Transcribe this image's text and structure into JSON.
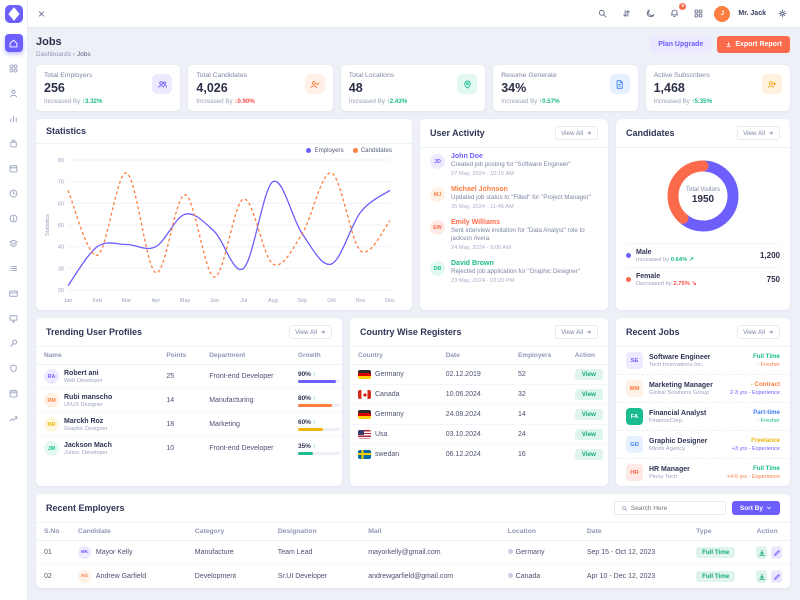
{
  "topbar": {
    "user_name": "Mr. Jack",
    "bell_badge": "5",
    "avatar_initial": "J"
  },
  "page": {
    "title": "Jobs",
    "breadcrumb_root": "Dashboards",
    "breadcrumb_sep": "›",
    "breadcrumb_current": "Jobs",
    "plan_upgrade": "Plan Upgrade",
    "export_report": "Export Report"
  },
  "colors": {
    "primary": "#6c5ffc",
    "coral": "#fb6b4b",
    "green": "#1bbc8f",
    "orange": "#fd7e41",
    "red": "#fb4a4a"
  },
  "stats": [
    {
      "label": "Total Employers",
      "value": "256",
      "prefix": "Increased By",
      "change": "3.32%",
      "dir": "up",
      "icon_bg": "#edeaff",
      "icon_fg": "#6c5ffc"
    },
    {
      "label": "Total Candidates",
      "value": "4,026",
      "prefix": "Increased By",
      "change": "0.90%",
      "dir": "down",
      "icon_bg": "#ffefe6",
      "icon_fg": "#fd7e41"
    },
    {
      "label": "Total Locations",
      "value": "48",
      "prefix": "Increased By",
      "change": "2.43%",
      "dir": "up",
      "icon_bg": "#e2f8f0",
      "icon_fg": "#1bbc8f"
    },
    {
      "label": "Resume Generate",
      "value": "34%",
      "prefix": "Increased By",
      "change": "0.57%",
      "dir": "up",
      "icon_bg": "#e5f1ff",
      "icon_fg": "#3e80f1"
    },
    {
      "label": "Active Subscribers",
      "value": "1,468",
      "prefix": "Increased By",
      "change": "5.35%",
      "dir": "up",
      "icon_bg": "#fff3df",
      "icon_fg": "#f5a623"
    }
  ],
  "chart_data": {
    "type": "line",
    "title": "Statistics",
    "ylabel": "Statistics",
    "x": [
      "Jan",
      "Feb",
      "Mar",
      "Apr",
      "May",
      "Jun",
      "Jul",
      "Aug",
      "Sep",
      "Oct",
      "Nov",
      "Dec"
    ],
    "ylim": [
      20,
      80
    ],
    "yticks": [
      20,
      30,
      40,
      50,
      60,
      70,
      80
    ],
    "grid": true,
    "legend_position": "top-right",
    "series": [
      {
        "name": "Employers",
        "color": "#6c5ffc",
        "style": "solid",
        "values": [
          22,
          40,
          41,
          40,
          55,
          47,
          30,
          70,
          46,
          32,
          56,
          66
        ]
      },
      {
        "name": "Candidates",
        "color": "#fd7e41",
        "style": "dashed",
        "values": [
          66,
          36,
          74,
          28,
          64,
          26,
          62,
          32,
          46,
          74,
          38,
          52
        ]
      }
    ]
  },
  "user_activity": {
    "title": "User Activity",
    "view_all": "View All",
    "items": [
      {
        "initials": "JD",
        "avatar_bg": "#edeaff",
        "avatar_fg": "#6c5ffc",
        "name": "John Doe",
        "text": "Created job posting for \"Software Engineer\"",
        "time": "27 May, 2024 - 10:15 AM"
      },
      {
        "initials": "MJ",
        "avatar_bg": "#fff1e5",
        "avatar_fg": "#fd7e41",
        "name": "Michael Johnson",
        "text": "Updated job status to \"Filled\" for \"Project Manager\"",
        "time": "25 May, 2024 - 11:45 AM"
      },
      {
        "initials": "EW",
        "avatar_bg": "#ffe9e4",
        "avatar_fg": "#fb6b4b",
        "name": "Emily Williams",
        "text": "Sent interview invitation for \"Data Analyst\" role to jackson rivera.",
        "time": "24 May, 2024 - 9:00 AM"
      },
      {
        "initials": "DB",
        "avatar_bg": "#e2f8f0",
        "avatar_fg": "#1bbc8f",
        "name": "David Brown",
        "text": "Rejected job application for \"Graphic Designer\"",
        "time": "23 May, 2024 - 03:20 PM"
      }
    ]
  },
  "candidates": {
    "title": "Candidates",
    "view_all": "View All",
    "center_label": "Total Visitors",
    "center_value": "1950",
    "male": {
      "label": "Male",
      "sub": "Increased by",
      "pct": "0.64%",
      "arrow": "↗",
      "value": "1,200",
      "num": 1200,
      "color": "#6c5ffc",
      "pct_color": "#1bbc8f"
    },
    "female": {
      "label": "Female",
      "sub": "Decreased by",
      "pct": "2.75%",
      "arrow": "↘",
      "value": "750",
      "num": 750,
      "color": "#fb6b4b",
      "pct_color": "#fb4a4a"
    }
  },
  "trending": {
    "title": "Trending User Profiles",
    "view_all": "View All",
    "arrow": "↑",
    "columns": [
      "Name",
      "Points",
      "Department",
      "Growth"
    ],
    "rows": [
      {
        "initials": "RA",
        "avatar_bg": "#edeaff",
        "avatar_fg": "#6c5ffc",
        "name": "Robert ani",
        "role": "Web Developer",
        "points": "25",
        "department": "Front-end Developer",
        "growth": "90%",
        "bar": 90,
        "bar_color": "#6c5ffc"
      },
      {
        "initials": "RM",
        "avatar_bg": "#fff1e5",
        "avatar_fg": "#fd7e41",
        "name": "Rubi manscho",
        "role": "UI/UX Designer",
        "points": "14",
        "department": "Manufacturing",
        "growth": "80%",
        "bar": 80,
        "bar_color": "#fd7e41"
      },
      {
        "initials": "MR",
        "avatar_bg": "#fff8e1",
        "avatar_fg": "#f0b50b",
        "name": "Marckh Roz",
        "role": "Graphic Designer",
        "points": "18",
        "department": "Marketing",
        "growth": "60%",
        "bar": 60,
        "bar_color": "#f0b50b"
      },
      {
        "initials": "JM",
        "avatar_bg": "#e2f8f0",
        "avatar_fg": "#1bbc8f",
        "name": "Jackson Mach",
        "role": "Junior. Developer",
        "points": "10",
        "department": "Front-end Developer",
        "growth": "35%",
        "bar": 35,
        "bar_color": "#1bbc8f"
      }
    ]
  },
  "countries": {
    "title": "Country Wise Registers",
    "view_all": "View All",
    "action_label": "View",
    "columns": [
      "Country",
      "Date",
      "Employers",
      "Action"
    ],
    "rows": [
      {
        "flag": "germany",
        "country": "Germany",
        "date": "02.12.2019",
        "employers": "52"
      },
      {
        "flag": "canada",
        "country": "Canada",
        "date": "10.06.2024",
        "employers": "32"
      },
      {
        "flag": "germany",
        "country": "Germany",
        "date": "24.08.2024",
        "employers": "14"
      },
      {
        "flag": "usa",
        "country": "Usa",
        "date": "03.10.2024",
        "employers": "24"
      },
      {
        "flag": "sweden",
        "country": "swedan",
        "date": "06.12.2024",
        "employers": "16"
      }
    ]
  },
  "recent_jobs": {
    "title": "Recent Jobs",
    "view_all": "View All",
    "items": [
      {
        "initials": "SE",
        "icon_bg": "#edeaff",
        "icon_fg": "#6c5ffc",
        "role": "Software Engineer",
        "company": "Tech Innovations Inc.",
        "type": "Full Time",
        "type_color": "#1bbc8f",
        "exp": "- Fresher",
        "exp_color": "#fd7e41"
      },
      {
        "initials": "MM",
        "icon_bg": "#fff1e5",
        "icon_fg": "#fd7e41",
        "role": "Marketing Manager",
        "company": "Global Solutions Group",
        "type": "- Contract",
        "type_color": "#fd7e41",
        "exp": "2-3 yrs - Experience",
        "exp_color": "#6c5ffc"
      },
      {
        "initials": "FA",
        "icon_bg": "#1bbc8f",
        "icon_fg": "#ffffff",
        "role": "Financial Analyst",
        "company": "FinanceCorp",
        "type": "Part-time",
        "type_color": "#3e80f1",
        "exp": "- Fresher",
        "exp_color": "#1bbc8f"
      },
      {
        "initials": "GD",
        "icon_bg": "#e5f1ff",
        "icon_fg": "#3e80f1",
        "role": "Graphic Designer",
        "company": "Minds Agency",
        "type": "Freelance",
        "type_color": "#f0b50b",
        "exp": "+3 yrs - Experience",
        "exp_color": "#6c5ffc"
      },
      {
        "initials": "HR",
        "icon_bg": "#ffe9e4",
        "icon_fg": "#fb6b4b",
        "role": "HR Manager",
        "company": "Pinoy Tech",
        "type": "Full Time",
        "type_color": "#1bbc8f",
        "exp": "+4-5 yrs - Experience",
        "exp_color": "#fd7e41"
      }
    ]
  },
  "recent_employers": {
    "title": "Recent Employers",
    "search_placeholder": "Search Here",
    "sort_label": "Sort By",
    "columns": [
      "S.No",
      "Candidate",
      "Category",
      "Designation",
      "Mail",
      "Location",
      "Date",
      "Type",
      "Action"
    ],
    "rows": [
      {
        "sno": "01",
        "initials": "MK",
        "avatar_bg": "#edeaff",
        "avatar_fg": "#6c5ffc",
        "candidate": "Mayor Kelly",
        "category": "Manufacture",
        "designation": "Team Lead",
        "mail": "mayorkelly@gmail.com",
        "location": "Germany",
        "date": "Sep 15 - Oct 12, 2023",
        "type": "Full Time"
      },
      {
        "sno": "02",
        "initials": "AG",
        "avatar_bg": "#fff1e5",
        "avatar_fg": "#fd7e41",
        "candidate": "Andrew Garfield",
        "category": "Development",
        "designation": "Sr.UI Developer",
        "mail": "andrewgarfield@gmail.com",
        "location": "Canada",
        "date": "Apr 10 - Dec 12, 2023",
        "type": "Full Time"
      }
    ]
  }
}
